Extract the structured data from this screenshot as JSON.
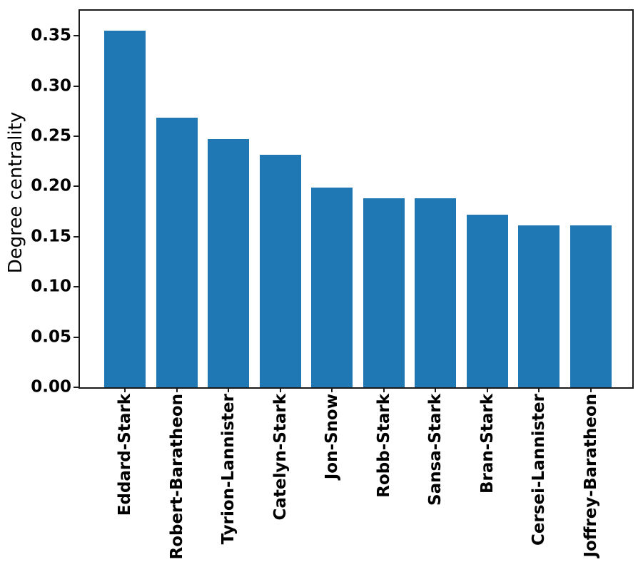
{
  "chart_data": {
    "type": "bar",
    "title": "",
    "xlabel": "",
    "ylabel": "Degree centrality",
    "categories": [
      "Eddard-Stark",
      "Robert-Baratheon",
      "Tyrion-Lannister",
      "Catelyn-Stark",
      "Jon-Snow",
      "Robb-Stark",
      "Sansa-Stark",
      "Bran-Stark",
      "Cersei-Lannister",
      "Joffrey-Baratheon"
    ],
    "values": [
      0.3548,
      0.2688,
      0.2473,
      0.2312,
      0.1989,
      0.1882,
      0.1882,
      0.172,
      0.1613,
      0.1613
    ],
    "ylim": [
      0,
      0.375
    ],
    "ytick_labels": [
      "0.00",
      "0.05",
      "0.10",
      "0.15",
      "0.20",
      "0.25",
      "0.30",
      "0.35"
    ],
    "bar_color": "#1f77b4",
    "axis_color": "#1a1a1a",
    "text_color": "#000000",
    "background_color": "#ffffff",
    "grid": false,
    "legend": null,
    "x_label_rotation_deg": 90
  }
}
